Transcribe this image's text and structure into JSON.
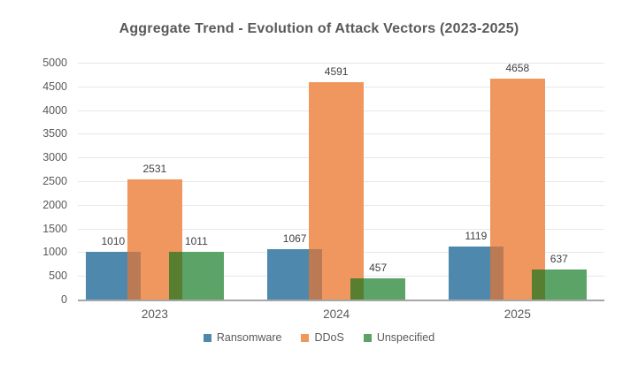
{
  "chart_data": {
    "type": "bar",
    "title": "Aggregate Trend - Evolution of Attack Vectors (2023-2025)",
    "categories": [
      "2023",
      "2024",
      "2025"
    ],
    "series": [
      {
        "name": "Ransomware",
        "values": [
          1010,
          1067,
          1119
        ],
        "color": "#4E88AC"
      },
      {
        "name": "DDoS",
        "values": [
          2531,
          4591,
          4658
        ],
        "color": "#F0975F"
      },
      {
        "name": "Unspecified",
        "values": [
          1011,
          457,
          637
        ],
        "color": "#5BA367"
      }
    ],
    "bar_style": "overlapping",
    "overlap_colors": {
      "ransomware_ddos": "#B97A54",
      "ddos_unspecified": "#587E30"
    },
    "ylim": [
      0,
      5000
    ],
    "ytick_step": 500,
    "ytick_labels": [
      "0",
      "500",
      "1000",
      "1500",
      "2000",
      "2500",
      "3000",
      "3500",
      "4000",
      "4500",
      "5000"
    ],
    "grid": true,
    "gridline_color": "#E7E7E7",
    "axis_line_color": "#A6A6A6",
    "axis_text_color": "#595959",
    "data_label_color": "#3F3F3F",
    "legend_position": "bottom",
    "legend_entries": [
      "Ransomware",
      "DDoS",
      "Unspecified"
    ]
  }
}
